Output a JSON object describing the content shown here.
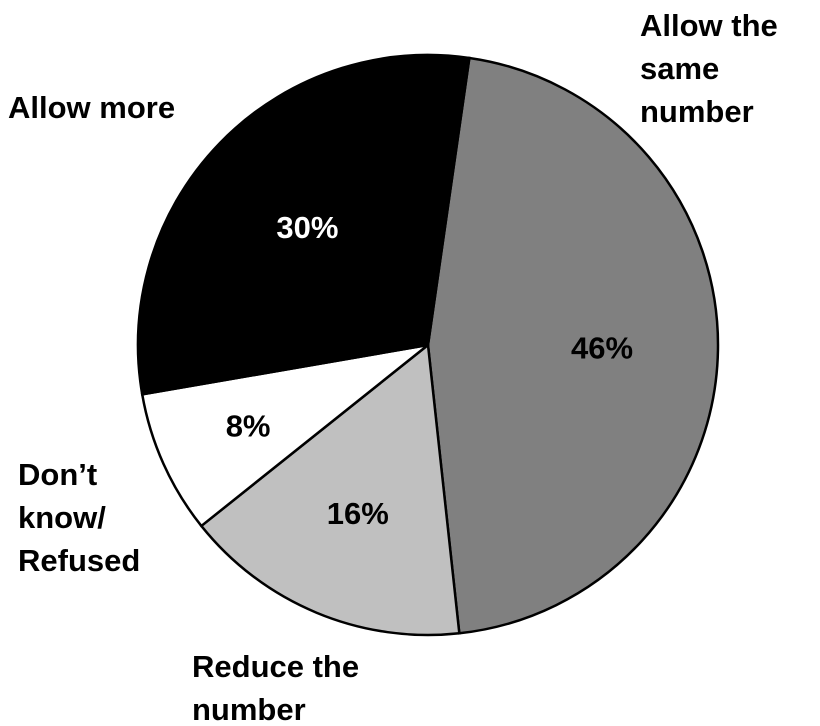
{
  "chart_data": {
    "type": "pie",
    "slices": [
      {
        "category": "Allow the same number",
        "label_lines": [
          "Allow the",
          "same",
          "number"
        ],
        "value": 46,
        "value_label": "46%",
        "color": "#808080",
        "text_color": "#000000"
      },
      {
        "category": "Reduce the number",
        "label_lines": [
          "Reduce the",
          "number"
        ],
        "value": 16,
        "value_label": "16%",
        "color": "#c0c0c0",
        "text_color": "#000000"
      },
      {
        "category": "Don’t know/ Refused",
        "label_lines": [
          "Don’t",
          "know/",
          "Refused"
        ],
        "value": 8,
        "value_label": "8%",
        "color": "#ffffff",
        "text_color": "#000000"
      },
      {
        "category": "Allow more",
        "label_lines": [
          "Allow more"
        ],
        "value": 30,
        "value_label": "30%",
        "color": "#000000",
        "text_color": "#ffffff"
      }
    ],
    "start": "near 12 o'clock, clockwise",
    "legend": "none (category labels placed outside slices)"
  }
}
